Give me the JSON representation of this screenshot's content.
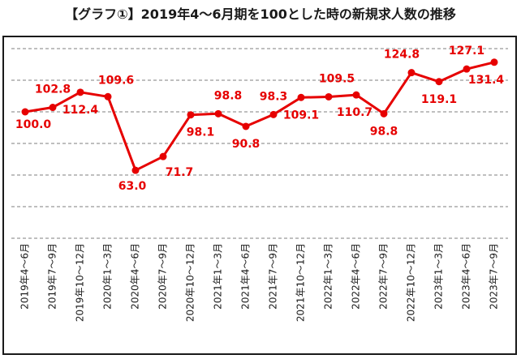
{
  "title": "【グラフ①】2019年4～6月期を100とした時の新規求人数の推移",
  "colors": {
    "line": "#e60000",
    "grid": "#7f7f7f",
    "frame": "#1a1a1a"
  },
  "chart_data": {
    "type": "line",
    "title": "【グラフ①】2019年4～6月期を100とした時の新規求人数の推移",
    "xlabel": "",
    "ylabel": "",
    "grid": "horizontal dashed",
    "ylim": [
      20,
      140
    ],
    "categories": [
      "2019年4～6月",
      "2019年7～9月",
      "2019年10～12月",
      "2020年1～3月",
      "2020年4～6月",
      "2020年7～9月",
      "2020年10～12月",
      "2021年1～3月",
      "2021年4～6月",
      "2021年7～9月",
      "2021年10～12月",
      "2022年1～3月",
      "2022年4～6月",
      "2022年7～9月",
      "2022年10～12月",
      "2023年1～3月",
      "2023年4～6月",
      "2023年7～9月"
    ],
    "series": [
      {
        "values": [
          100.0,
          102.8,
          112.4,
          109.6,
          63.0,
          71.7,
          98.1,
          98.8,
          90.8,
          98.3,
          109.1,
          109.5,
          110.7,
          98.8,
          124.8,
          119.1,
          127.1,
          131.4
        ],
        "labels": [
          "100.0",
          "102.8",
          "112.4",
          "109.6",
          "63.0",
          "71.7",
          "98.1",
          "98.8",
          "90.8",
          "98.3",
          "109.1",
          "109.5",
          "110.7",
          "98.8",
          "124.8",
          "119.1",
          "127.1",
          "131.4"
        ]
      }
    ]
  }
}
